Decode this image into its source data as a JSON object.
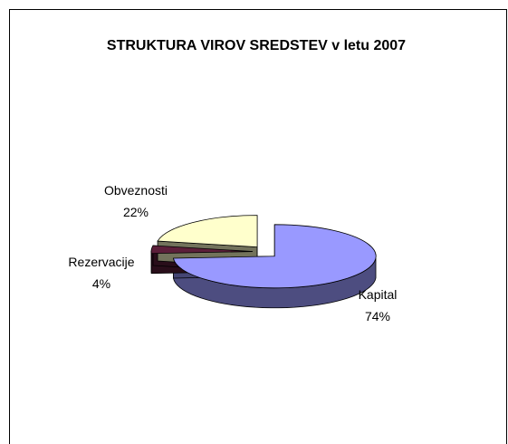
{
  "chart_data": {
    "type": "pie",
    "title": "STRUKTURA VIROV SREDSTEV v letu 2007",
    "categories": [
      "Kapital",
      "Rezervacije",
      "Obveznosti"
    ],
    "values": [
      74,
      4,
      22
    ],
    "value_labels": [
      "74%",
      "4%",
      "22%"
    ],
    "colors": [
      "#9999ff",
      "#5c1f3a",
      "#ffffcc"
    ]
  }
}
